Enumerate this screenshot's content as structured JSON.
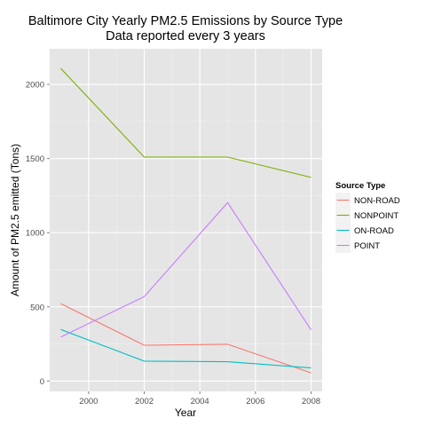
{
  "chart_data": {
    "type": "line",
    "title": "Baltimore City Yearly PM2.5 Emissions by Source Type",
    "subtitle": "Data reported every 3 years",
    "xlabel": "Year",
    "ylabel": "Amount of PM2.5 emitted (Tons)",
    "x": [
      1999,
      2002,
      2005,
      2008
    ],
    "xlim": [
      1998.6,
      2008.4
    ],
    "ylim": [
      -70,
      2240
    ],
    "xticks": [
      2000,
      2002,
      2004,
      2006,
      2008
    ],
    "yticks": [
      0,
      500,
      1000,
      1500,
      2000
    ],
    "grid": true,
    "legend_title": "Source Type",
    "legend_position": "right",
    "series": [
      {
        "name": "NON-ROAD",
        "color": "#F8766D",
        "values": [
          522,
          241,
          248,
          55
        ]
      },
      {
        "name": "NONPOINT",
        "color": "#7CAE00",
        "values": [
          2108,
          1510,
          1510,
          1373
        ]
      },
      {
        "name": "ON-ROAD",
        "color": "#00BFC4",
        "values": [
          347,
          134,
          130,
          88
        ]
      },
      {
        "name": "POINT",
        "color": "#C77CFF",
        "values": [
          296,
          569,
          1203,
          345
        ]
      }
    ]
  }
}
